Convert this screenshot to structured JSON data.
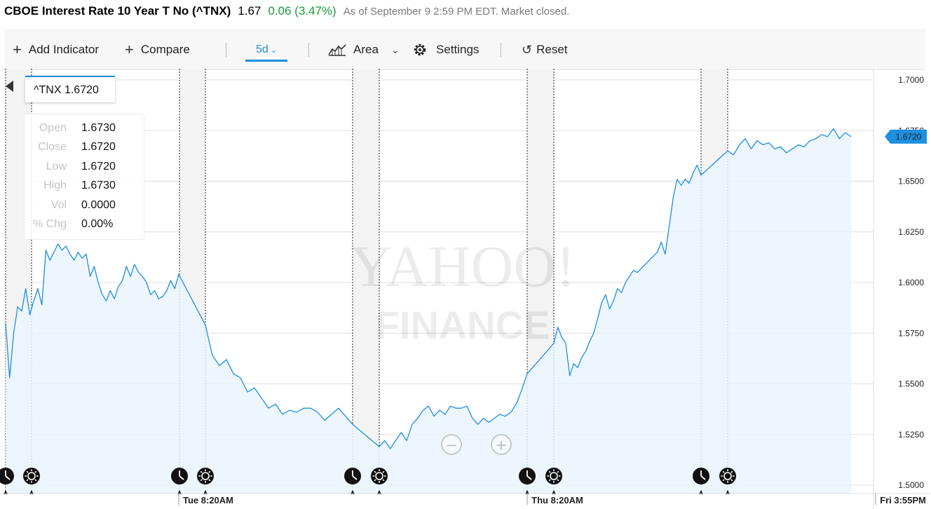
{
  "quote": {
    "name": "CBOE Interest Rate 10 Year T No (^TNX)",
    "price": "1.67",
    "change": "0.06 (3.47%)",
    "status": "As of September 9 2:59 PM EDT. Market closed."
  },
  "toolbar": {
    "add_indicator": "Add Indicator",
    "compare": "Compare",
    "range": "5d",
    "chart_type": "Area",
    "settings": "Settings",
    "reset": "Reset"
  },
  "tooltip": {
    "name": "^TNX 1.6720",
    "rows": [
      {
        "label": "Open",
        "value": "1.6730"
      },
      {
        "label": "Close",
        "value": "1.6720"
      },
      {
        "label": "Low",
        "value": "1.6720"
      },
      {
        "label": "High",
        "value": "1.6730"
      },
      {
        "label": "Vol",
        "value": "0.0000"
      },
      {
        "label": "% Chg",
        "value": "0.00%"
      }
    ]
  },
  "watermark": {
    "line1": "YAHOO!",
    "line2": "FINANCE"
  },
  "colors": {
    "line": "#1e8fe0",
    "area": "#eaf4fc",
    "up": "#1a9a3a",
    "gray_text": "#7a7a7a"
  },
  "chart_data": {
    "type": "area",
    "title": "",
    "xlabel": "",
    "ylabel": "",
    "ylim": [
      1.5,
      1.7
    ],
    "y_ticks": [
      "1.7000",
      "1.6750",
      "1.6500",
      "1.6250",
      "1.6000",
      "1.5750",
      "1.5500",
      "1.5250",
      "1.5000"
    ],
    "x_ticks": [
      "Tue 8:20AM",
      "Thu 8:20AM",
      "Fri 3:55PM"
    ],
    "last_value_label": "1.6720",
    "series": [
      {
        "values": [
          1.58,
          1.553,
          1.575,
          1.588,
          1.586,
          1.597,
          1.584,
          1.591,
          1.597,
          1.589,
          1.616,
          1.611,
          1.615,
          1.619,
          1.616,
          1.618,
          1.614,
          1.611,
          1.615,
          1.612,
          1.614,
          1.603,
          1.608,
          1.6,
          1.594,
          1.591,
          1.596,
          1.592,
          1.598,
          1.601,
          1.608,
          1.603,
          1.609,
          1.605,
          1.603,
          1.6,
          1.594,
          1.596,
          1.592,
          1.593,
          1.596,
          1.601,
          1.597,
          1.604,
          1.579,
          1.564,
          1.559,
          1.562,
          1.555,
          1.553,
          1.546,
          1.548,
          1.543,
          1.538,
          1.54,
          1.535,
          1.537,
          1.536,
          1.538,
          1.538,
          1.536,
          1.532,
          1.535,
          1.538,
          1.534,
          1.53,
          1.519,
          1.522,
          1.518,
          1.522,
          1.526,
          1.522,
          1.53,
          1.533,
          1.537,
          1.539,
          1.534,
          1.537,
          1.535,
          1.539,
          1.538,
          1.538,
          1.539,
          1.533,
          1.53,
          1.533,
          1.531,
          1.533,
          1.535,
          1.534,
          1.536,
          1.54,
          1.547,
          1.555,
          1.57,
          1.578,
          1.573,
          1.57,
          1.554,
          1.56,
          1.558,
          1.563,
          1.566,
          1.571,
          1.575,
          1.582,
          1.59,
          1.594,
          1.587,
          1.591,
          1.597,
          1.595,
          1.6,
          1.603,
          1.606,
          1.605,
          1.607,
          1.609,
          1.611,
          1.613,
          1.615,
          1.62,
          1.614,
          1.628,
          1.642,
          1.651,
          1.648,
          1.651,
          1.649,
          1.654,
          1.658,
          1.653,
          1.665,
          1.663,
          1.668,
          1.671,
          1.666,
          1.67,
          1.668,
          1.669,
          1.666,
          1.667,
          1.664,
          1.666,
          1.668,
          1.667,
          1.67,
          1.671,
          1.673,
          1.672,
          1.676,
          1.671,
          1.674,
          1.672
        ]
      }
    ]
  }
}
